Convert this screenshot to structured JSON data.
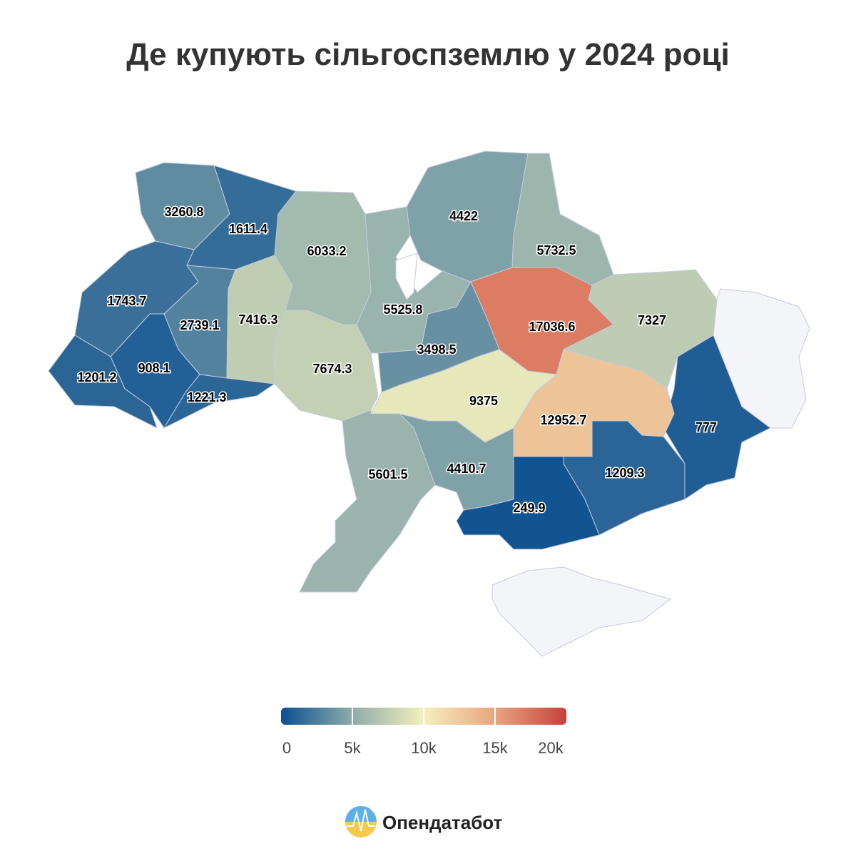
{
  "title": "Де купують сільгоспземлю у 2024 році",
  "chart_data": {
    "type": "choropleth",
    "values": [
      3260.8,
      1611.4,
      1743.7,
      2739.1,
      908.1,
      1201.2,
      1221.3,
      7416.3,
      6033.2,
      7674.3,
      5525.8,
      4422,
      5732.5,
      17036.6,
      3498.5,
      7327,
      777,
      12952.7,
      1209.3,
      9375,
      4410.7,
      5601.5,
      249.9
    ],
    "colors": [
      "#0b4f90",
      "#8eacab",
      "#f3f0bc",
      "#e9a57f",
      "#c6413b"
    ],
    "clim": [
      0,
      20000
    ],
    "ticks": [
      0,
      {
        "value": 5000,
        "label": "5k"
      },
      {
        "value": 10000,
        "label": "10k"
      },
      {
        "value": 15000,
        "label": "15k"
      },
      {
        "value": 20000,
        "label": "20k"
      }
    ]
  },
  "logo": "Опендатабот"
}
